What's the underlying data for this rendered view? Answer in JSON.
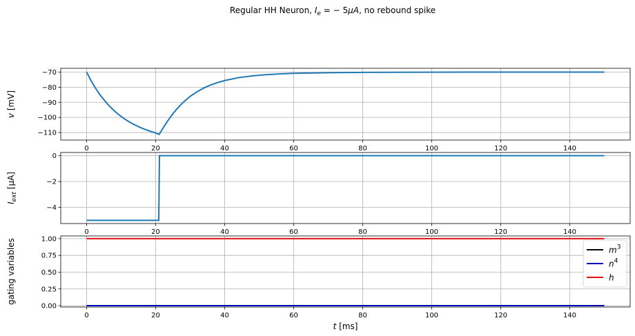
{
  "title": {
    "pre": "Regular HH Neuron, ",
    "ie_sym": "I",
    "ie_sub": "e",
    "mid": " = − 5",
    "mu": "μ",
    "unit": "A",
    "post": ", no rebound spike"
  },
  "colors": {
    "voltage": "#1f77b4",
    "current": "#1f77b4",
    "m3": "#000000",
    "n4": "#0000bb",
    "h": "#dd1111"
  },
  "chart_data": [
    {
      "type": "line",
      "ylabel": {
        "sym": "v",
        "unit": "[mV]"
      },
      "xlim": [
        -7.5,
        157.5
      ],
      "ylim": [
        -115,
        -67.5
      ],
      "xticks": [
        0,
        20,
        40,
        60,
        80,
        100,
        120,
        140
      ],
      "yticks": [
        -70,
        -80,
        -90,
        -100,
        -110
      ],
      "ytick_labels": [
        "−70",
        "−80",
        "−90",
        "−100",
        "−110"
      ],
      "grid": true,
      "series": [
        {
          "x": [
            0,
            1,
            2,
            3,
            4,
            5,
            6,
            7,
            8,
            9,
            10,
            11,
            12,
            13,
            14,
            15,
            16,
            17,
            18,
            19,
            20,
            21,
            22,
            23,
            24,
            25,
            26,
            27,
            28,
            29,
            30,
            32,
            34,
            36,
            38,
            40,
            44,
            48,
            52,
            56,
            60,
            70,
            80,
            90,
            100,
            110,
            120,
            130,
            140,
            150
          ],
          "y": [
            -70,
            -74.5,
            -78.5,
            -82.1,
            -85.4,
            -88.3,
            -91.0,
            -93.4,
            -95.6,
            -97.6,
            -99.4,
            -101.0,
            -102.5,
            -103.8,
            -105.0,
            -106.1,
            -107.1,
            -108.0,
            -108.8,
            -109.6,
            -110.3,
            -111.3,
            -107.6,
            -104.0,
            -100.7,
            -97.6,
            -94.8,
            -92.3,
            -90.0,
            -88.0,
            -86.1,
            -83.0,
            -80.5,
            -78.5,
            -76.9,
            -75.6,
            -73.7,
            -72.5,
            -71.7,
            -71.2,
            -70.8,
            -70.4,
            -70.2,
            -70.1,
            -70.05,
            -70.02,
            -70.01,
            -70,
            -70,
            -70
          ]
        }
      ]
    },
    {
      "type": "line",
      "ylabel": {
        "sym": "I",
        "sub": "ext",
        "unit": "[μA]"
      },
      "xlim": [
        -7.5,
        157.5
      ],
      "ylim": [
        -5.25,
        0.25
      ],
      "xticks": [
        0,
        20,
        40,
        60,
        80,
        100,
        120,
        140
      ],
      "yticks": [
        0,
        -2,
        -4
      ],
      "ytick_labels": [
        "0",
        "−2",
        "−4"
      ],
      "grid": true,
      "series": [
        {
          "x": [
            0,
            20.9,
            21.1,
            150
          ],
          "y": [
            -5,
            -5,
            0,
            0
          ]
        }
      ]
    },
    {
      "type": "line",
      "ylabel": {
        "text": "gating variables"
      },
      "xlabel": {
        "sym": "t",
        "unit": "[ms]"
      },
      "xlim": [
        -7.5,
        157.5
      ],
      "ylim": [
        -0.02,
        1.04
      ],
      "xticks": [
        0,
        20,
        40,
        60,
        80,
        100,
        120,
        140
      ],
      "yticks": [
        0,
        0.25,
        0.5,
        0.75,
        1.0
      ],
      "ytick_labels": [
        "0.00",
        "0.25",
        "0.50",
        "0.75",
        "1.00"
      ],
      "grid": true,
      "legend": "upper right",
      "series": [
        {
          "name": "m",
          "sup": "3",
          "color_key": "m3",
          "x": [
            0,
            150
          ],
          "y": [
            0.0,
            0.0
          ]
        },
        {
          "name": "n",
          "sup": "4",
          "color_key": "n4",
          "x": [
            0,
            150
          ],
          "y": [
            0.001,
            0.001
          ]
        },
        {
          "name": "h",
          "sup": "",
          "color_key": "h",
          "x": [
            0,
            150
          ],
          "y": [
            1.0,
            1.0
          ]
        }
      ]
    }
  ]
}
